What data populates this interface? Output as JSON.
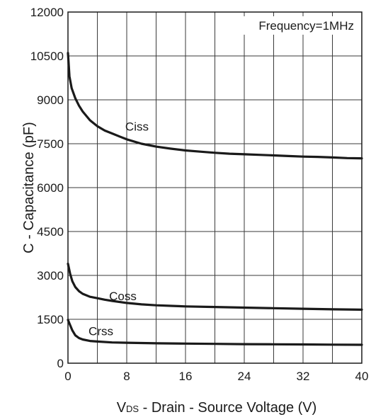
{
  "chart_data": {
    "type": "line",
    "xlabel": {
      "prefix": "V",
      "sub": "DS",
      "rest": " - Drain - Source Voltage (V)"
    },
    "ylabel": "C - Capacitance (pF)",
    "annotation": "Frequency=1MHz",
    "xlim": [
      0,
      40
    ],
    "ylim": [
      0,
      12000
    ],
    "x_ticks": [
      0,
      8,
      16,
      24,
      32,
      40
    ],
    "y_ticks": [
      0,
      1500,
      3000,
      4500,
      6000,
      7500,
      9000,
      10500,
      12000
    ],
    "grid": true,
    "series": [
      {
        "name": "Ciss",
        "x": [
          0,
          0.2,
          0.5,
          1,
          1.5,
          2,
          3,
          4,
          5,
          6,
          7,
          8,
          10,
          12,
          14,
          16,
          18,
          20,
          22,
          24,
          26,
          28,
          30,
          32,
          34,
          36,
          38,
          40
        ],
        "y": [
          10600,
          9800,
          9400,
          9050,
          8800,
          8600,
          8300,
          8100,
          7950,
          7850,
          7750,
          7650,
          7500,
          7400,
          7330,
          7270,
          7230,
          7190,
          7160,
          7140,
          7120,
          7100,
          7080,
          7060,
          7050,
          7030,
          7010,
          7000
        ]
      },
      {
        "name": "Coss",
        "x": [
          0,
          0.3,
          0.6,
          1,
          1.5,
          2,
          3,
          4,
          5,
          6,
          8,
          10,
          12,
          14,
          16,
          20,
          24,
          28,
          32,
          36,
          40
        ],
        "y": [
          3400,
          3050,
          2800,
          2600,
          2460,
          2370,
          2270,
          2220,
          2170,
          2130,
          2060,
          2010,
          1980,
          1960,
          1940,
          1920,
          1900,
          1880,
          1860,
          1840,
          1830
        ]
      },
      {
        "name": "Crss",
        "x": [
          0,
          0.3,
          0.6,
          1,
          1.5,
          2,
          3,
          4,
          6,
          8,
          12,
          16,
          20,
          24,
          28,
          32,
          36,
          40
        ],
        "y": [
          1480,
          1300,
          1120,
          950,
          860,
          810,
          760,
          740,
          710,
          700,
          680,
          670,
          660,
          650,
          645,
          640,
          635,
          630
        ]
      }
    ]
  }
}
